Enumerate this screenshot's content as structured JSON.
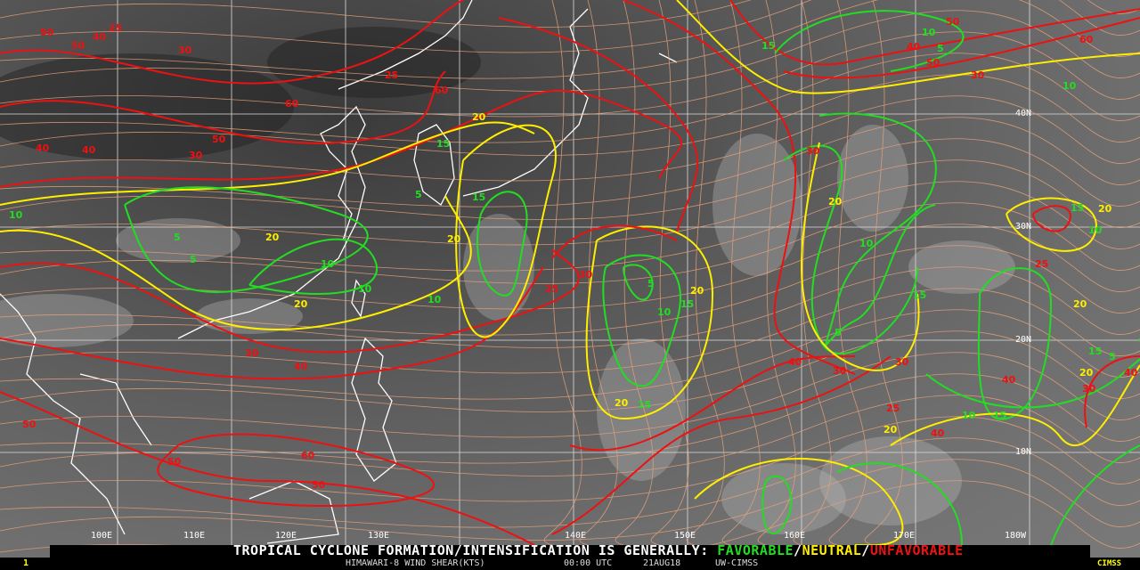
{
  "title_prefix": "TROPICAL CYCLONE FORMATION/INTENSIFICATION IS GENERALLY:",
  "legend": {
    "favorable": {
      "label": "FAVORABLE",
      "color": "#22dd22"
    },
    "neutral": {
      "label": "NEUTRAL",
      "color": "#ffee00"
    },
    "unfavorable": {
      "label": "UNFAVORABLE",
      "color": "#ee1111"
    },
    "separator": "/"
  },
  "subtitle": {
    "product": "HIMAWARI-8 WIND SHEAR(KTS)",
    "time": "00:00 UTC",
    "date": "21AUG18",
    "source": "UW-CIMSS"
  },
  "frame_number": "1",
  "logo": "CIMSS",
  "longitude_labels": [
    "100E",
    "110E",
    "120E",
    "130E",
    "140E",
    "150E",
    "160E",
    "170E",
    "180W"
  ],
  "latitude_labels": [
    "40N",
    "30N",
    "20N",
    "10N"
  ],
  "contour_labels": [
    {
      "value": "50",
      "level": "unfavorable"
    },
    {
      "value": "50",
      "level": "unfavorable"
    },
    {
      "value": "40",
      "level": "unfavorable"
    },
    {
      "value": "25",
      "level": "unfavorable"
    },
    {
      "value": "30",
      "level": "unfavorable"
    },
    {
      "value": "25",
      "level": "unfavorable"
    },
    {
      "value": "60",
      "level": "unfavorable"
    },
    {
      "value": "60",
      "level": "unfavorable"
    },
    {
      "value": "50",
      "level": "unfavorable"
    },
    {
      "value": "40",
      "level": "unfavorable"
    },
    {
      "value": "40",
      "level": "unfavorable"
    },
    {
      "value": "30",
      "level": "unfavorable"
    },
    {
      "value": "20",
      "level": "neutral"
    },
    {
      "value": "15",
      "level": "favorable"
    },
    {
      "value": "5",
      "level": "favorable"
    },
    {
      "value": "10",
      "level": "favorable"
    },
    {
      "value": "5",
      "level": "favorable"
    },
    {
      "value": "20",
      "level": "neutral"
    },
    {
      "value": "10",
      "level": "favorable"
    },
    {
      "value": "5",
      "level": "favorable"
    },
    {
      "value": "10",
      "level": "favorable"
    },
    {
      "value": "20",
      "level": "neutral"
    },
    {
      "value": "10",
      "level": "favorable"
    },
    {
      "value": "15",
      "level": "favorable"
    },
    {
      "value": "20",
      "level": "neutral"
    },
    {
      "value": "25",
      "level": "unfavorable"
    },
    {
      "value": "30",
      "level": "unfavorable"
    },
    {
      "value": "5",
      "level": "favorable"
    },
    {
      "value": "10",
      "level": "favorable"
    },
    {
      "value": "15",
      "level": "favorable"
    },
    {
      "value": "20",
      "level": "neutral"
    },
    {
      "value": "20",
      "level": "neutral"
    },
    {
      "value": "15",
      "level": "favorable"
    },
    {
      "value": "30",
      "level": "unfavorable"
    },
    {
      "value": "40",
      "level": "unfavorable"
    },
    {
      "value": "30",
      "level": "unfavorable"
    },
    {
      "value": "50",
      "level": "unfavorable"
    },
    {
      "value": "50",
      "level": "unfavorable"
    },
    {
      "value": "60",
      "level": "unfavorable"
    },
    {
      "value": "50",
      "level": "unfavorable"
    },
    {
      "value": "40",
      "level": "unfavorable"
    },
    {
      "value": "25",
      "level": "unfavorable"
    },
    {
      "value": "30",
      "level": "unfavorable"
    },
    {
      "value": "20",
      "level": "neutral"
    },
    {
      "value": "10",
      "level": "favorable"
    },
    {
      "value": "5",
      "level": "favorable"
    },
    {
      "value": "15",
      "level": "favorable"
    },
    {
      "value": "20",
      "level": "neutral"
    },
    {
      "value": "25",
      "level": "unfavorable"
    },
    {
      "value": "30",
      "level": "unfavorable"
    },
    {
      "value": "40",
      "level": "unfavorable"
    },
    {
      "value": "20",
      "level": "neutral"
    },
    {
      "value": "10",
      "level": "favorable"
    },
    {
      "value": "15",
      "level": "favorable"
    },
    {
      "value": "10",
      "level": "favorable"
    },
    {
      "value": "15",
      "level": "favorable"
    },
    {
      "value": "5",
      "level": "favorable"
    },
    {
      "value": "20",
      "level": "neutral"
    },
    {
      "value": "15",
      "level": "favorable"
    },
    {
      "value": "20",
      "level": "neutral"
    },
    {
      "value": "40",
      "level": "unfavorable"
    },
    {
      "value": "30",
      "level": "unfavorable"
    },
    {
      "value": "10",
      "level": "favorable"
    },
    {
      "value": "15",
      "level": "favorable"
    },
    {
      "value": "10",
      "level": "favorable"
    },
    {
      "value": "5",
      "level": "favorable"
    },
    {
      "value": "60",
      "level": "unfavorable"
    },
    {
      "value": "50",
      "level": "unfavorable"
    },
    {
      "value": "50",
      "level": "unfavorable"
    },
    {
      "value": "40",
      "level": "unfavorable"
    },
    {
      "value": "30",
      "level": "unfavorable"
    },
    {
      "value": "40",
      "level": "unfavorable"
    }
  ]
}
